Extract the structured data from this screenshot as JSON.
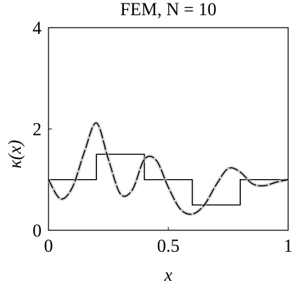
{
  "chart_data": {
    "type": "line",
    "title": "FEM, N = 10",
    "xlabel": "x",
    "ylabel": "κ(x)",
    "xlim": [
      0,
      1
    ],
    "ylim": [
      0,
      4
    ],
    "xticks": [
      0,
      0.5,
      1
    ],
    "yticks": [
      0,
      2,
      4
    ],
    "series": [
      {
        "color": "#000000",
        "style": "solid",
        "x": [
          0,
          0.2,
          0.2,
          0.4,
          0.4,
          0.6,
          0.6,
          0.8,
          0.8,
          1
        ],
        "values": [
          1,
          1,
          1.5,
          1.5,
          1,
          1,
          0.5,
          0.5,
          1,
          1
        ]
      },
      {
        "color": "#000000",
        "style": "dashed",
        "x": [
          0,
          0.05,
          0.1,
          0.15,
          0.2,
          0.25,
          0.3,
          0.35,
          0.4,
          0.45,
          0.5,
          0.55,
          0.6,
          0.65,
          0.7,
          0.75,
          0.8,
          0.85,
          0.9,
          0.95,
          1
        ],
        "values": [
          1.0,
          0.62,
          0.85,
          1.55,
          2.12,
          1.4,
          0.72,
          0.8,
          1.4,
          1.38,
          0.85,
          0.42,
          0.32,
          0.5,
          0.9,
          1.22,
          1.15,
          0.92,
          0.88,
          0.95,
          1.0
        ]
      }
    ]
  }
}
